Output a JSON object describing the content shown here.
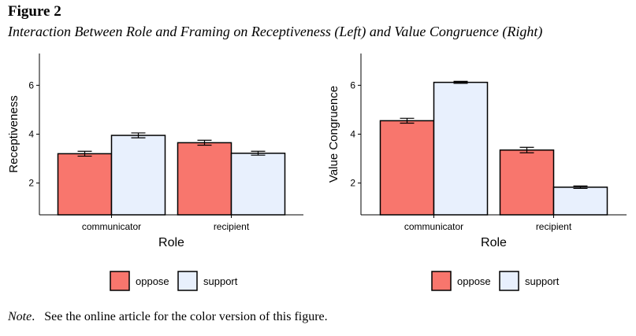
{
  "figure": {
    "label": "Figure 2",
    "caption": "Interaction Between Role and Framing on Receptiveness (Left) and Value Congruence (Right)"
  },
  "note": {
    "label": "Note",
    "text": "See the online article for the color version of this figure."
  },
  "colors": {
    "oppose": "#f8766d",
    "support": "#e8f0fd",
    "stroke": "#000000",
    "axis": "#000000"
  },
  "chart_data": [
    {
      "type": "bar",
      "title": "Receptiveness",
      "xlabel": "Role",
      "ylabel": "Receptiveness",
      "categories": [
        "communicator",
        "recipient"
      ],
      "yticks": [
        2,
        4,
        6
      ],
      "ylim": [
        0.7,
        7.3
      ],
      "series": [
        {
          "name": "oppose",
          "values": [
            3.2,
            3.65
          ],
          "errors": [
            0.1,
            0.1
          ]
        },
        {
          "name": "support",
          "values": [
            3.95,
            3.22
          ],
          "errors": [
            0.1,
            0.08
          ]
        }
      ],
      "legend": {
        "position": "bottom",
        "entries": [
          "oppose",
          "support"
        ]
      }
    },
    {
      "type": "bar",
      "title": "Value Congruence",
      "xlabel": "Role",
      "ylabel": "Value Congruence",
      "categories": [
        "communicator",
        "recipient"
      ],
      "yticks": [
        2,
        4,
        6
      ],
      "ylim": [
        0.7,
        7.3
      ],
      "series": [
        {
          "name": "oppose",
          "values": [
            4.55,
            3.35
          ],
          "errors": [
            0.1,
            0.11
          ]
        },
        {
          "name": "support",
          "values": [
            6.12,
            1.83
          ],
          "errors": [
            0.04,
            0.05
          ]
        }
      ],
      "legend": {
        "position": "bottom",
        "entries": [
          "oppose",
          "support"
        ]
      }
    }
  ]
}
